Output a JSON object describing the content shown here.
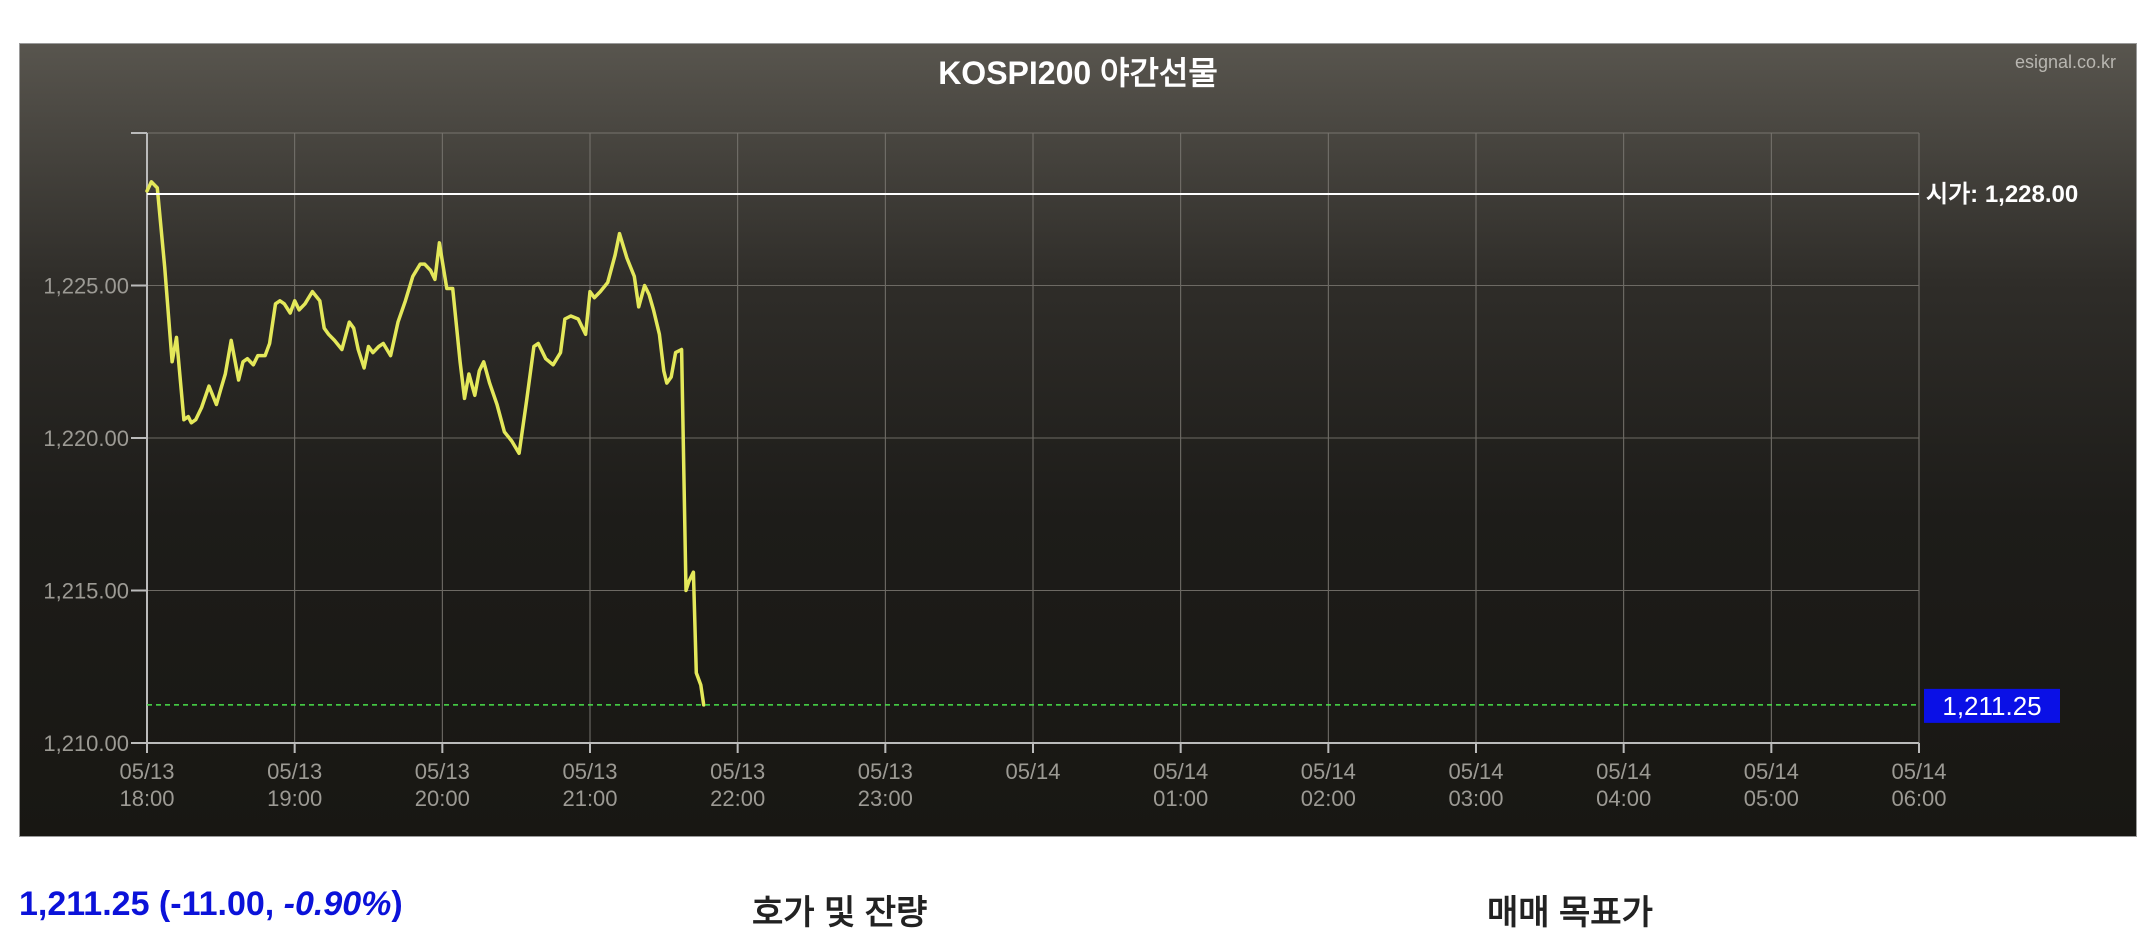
{
  "chart_data": {
    "type": "line",
    "title": "KOSPI200 야간선물",
    "watermark": "esignal.co.kr",
    "x_ticks": [
      {
        "date": "05/13",
        "time": "18:00"
      },
      {
        "date": "05/13",
        "time": "19:00"
      },
      {
        "date": "05/13",
        "time": "20:00"
      },
      {
        "date": "05/13",
        "time": "21:00"
      },
      {
        "date": "05/13",
        "time": "22:00"
      },
      {
        "date": "05/13",
        "time": "23:00"
      },
      {
        "date": "05/14",
        "time": ""
      },
      {
        "date": "05/14",
        "time": "01:00"
      },
      {
        "date": "05/14",
        "time": "02:00"
      },
      {
        "date": "05/14",
        "time": "03:00"
      },
      {
        "date": "05/14",
        "time": "04:00"
      },
      {
        "date": "05/14",
        "time": "05:00"
      },
      {
        "date": "05/14",
        "time": "06:00"
      }
    ],
    "x_range_hours": [
      0,
      12
    ],
    "y_ticks": [
      "1,210.00",
      "1,215.00",
      "1,220.00",
      "1,225.00"
    ],
    "y_tick_values": [
      1210,
      1215,
      1220,
      1225
    ],
    "ylim": [
      1210,
      1230
    ],
    "grid": true,
    "series": [
      {
        "color": "#e4e85a",
        "x": [
          0,
          0.03,
          0.07,
          0.12,
          0.17,
          0.2,
          0.22,
          0.25,
          0.28,
          0.3,
          0.33,
          0.37,
          0.42,
          0.47,
          0.5,
          0.53,
          0.57,
          0.62,
          0.65,
          0.68,
          0.72,
          0.75,
          0.8,
          0.83,
          0.87,
          0.9,
          0.93,
          0.97,
          1.0,
          1.03,
          1.07,
          1.12,
          1.17,
          1.2,
          1.23,
          1.27,
          1.32,
          1.37,
          1.4,
          1.43,
          1.47,
          1.5,
          1.53,
          1.57,
          1.6,
          1.65,
          1.7,
          1.75,
          1.8,
          1.85,
          1.88,
          1.92,
          1.95,
          1.98,
          2.0,
          2.03,
          2.07,
          2.12,
          2.15,
          2.18,
          2.22,
          2.25,
          2.28,
          2.32,
          2.37,
          2.42,
          2.47,
          2.52,
          2.57,
          2.62,
          2.65,
          2.7,
          2.75,
          2.8,
          2.83,
          2.87,
          2.92,
          2.97,
          3.0,
          3.03,
          3.07,
          3.12,
          3.17,
          3.2,
          3.25,
          3.3,
          3.33,
          3.37,
          3.4,
          3.43,
          3.47,
          3.5,
          3.52,
          3.55,
          3.58,
          3.62,
          3.65,
          3.67,
          3.7,
          3.72,
          3.75,
          3.77
        ],
        "y": [
          1228.1,
          1228.4,
          1228.2,
          1225.6,
          1222.5,
          1223.3,
          1222.2,
          1220.6,
          1220.7,
          1220.5,
          1220.6,
          1221.0,
          1221.7,
          1221.1,
          1221.6,
          1222.1,
          1223.2,
          1221.9,
          1222.5,
          1222.6,
          1222.4,
          1222.7,
          1222.7,
          1223.1,
          1224.4,
          1224.5,
          1224.4,
          1224.1,
          1224.5,
          1224.2,
          1224.4,
          1224.8,
          1224.5,
          1223.6,
          1223.4,
          1223.2,
          1222.9,
          1223.8,
          1223.6,
          1222.9,
          1222.3,
          1223.0,
          1222.8,
          1223.0,
          1223.1,
          1222.7,
          1223.8,
          1224.5,
          1225.3,
          1225.7,
          1225.7,
          1225.5,
          1225.2,
          1226.4,
          1225.8,
          1224.9,
          1224.9,
          1222.5,
          1221.3,
          1222.1,
          1221.4,
          1222.2,
          1222.5,
          1221.8,
          1221.1,
          1220.2,
          1219.9,
          1219.5,
          1221.2,
          1223.0,
          1223.1,
          1222.6,
          1222.4,
          1222.8,
          1223.9,
          1224.0,
          1223.9,
          1223.4,
          1224.8,
          1224.6,
          1224.8,
          1225.1,
          1226.0,
          1226.7,
          1225.9,
          1225.3,
          1224.3,
          1225.0,
          1224.7,
          1224.2,
          1223.4,
          1222.2,
          1221.8,
          1222.0,
          1222.8,
          1222.9,
          1215.0,
          1215.3,
          1215.6,
          1212.3,
          1211.9,
          1211.25
        ]
      }
    ],
    "open_line": {
      "value": 1228.0,
      "label": "시가: 1,228.00",
      "color": "#ffffff"
    },
    "current_line": {
      "value": 1211.25,
      "label": "1,211.25",
      "color": "#49e04a",
      "badge_color": "#0a10e6"
    }
  },
  "footer": {
    "quote_main": "1,211.25 (-11.00, ",
    "quote_pct": "-0.90%",
    "quote_close": ")",
    "orderbook_title": "호가 및 잔량",
    "target_title": "매매 목표가"
  }
}
